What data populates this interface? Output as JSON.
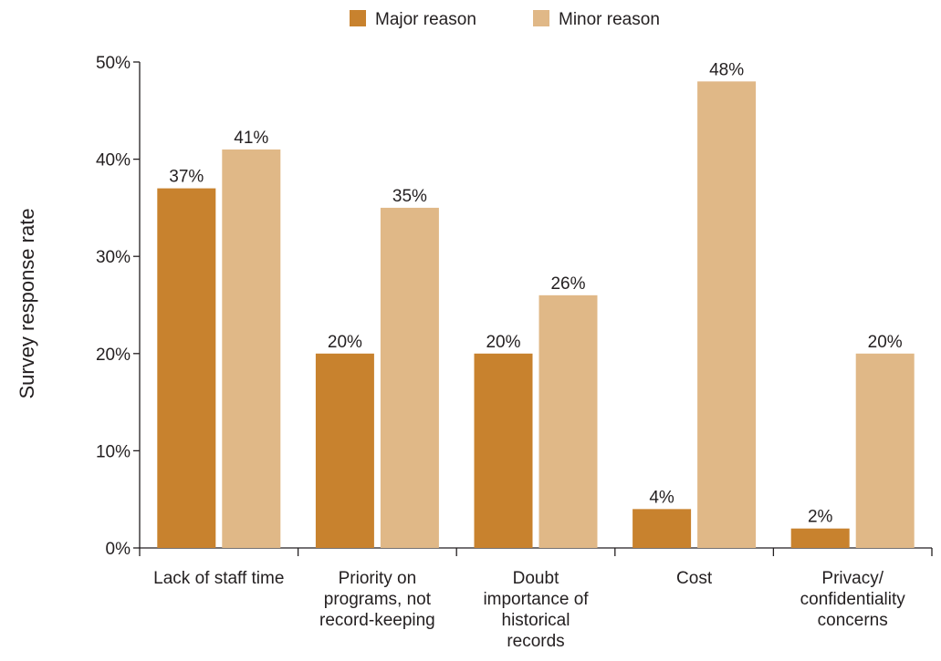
{
  "chart_data": {
    "type": "bar",
    "ylabel": "Survey response rate",
    "ylim": [
      0,
      50
    ],
    "yticks": [
      "0%",
      "10%",
      "20%",
      "30%",
      "40%",
      "50%"
    ],
    "categories": [
      [
        "Lack of staff time"
      ],
      [
        "Priority on",
        "programs, not",
        "record-keeping"
      ],
      [
        "Doubt",
        "importance of",
        "historical",
        "records"
      ],
      [
        "Cost"
      ],
      [
        "Privacy/",
        "confidentiality",
        "concerns"
      ]
    ],
    "series": [
      {
        "name": "Major reason",
        "color": "#c8822e",
        "values": [
          37,
          20,
          20,
          4,
          2
        ],
        "labels": [
          "37%",
          "20%",
          "20%",
          "4%",
          "2%"
        ]
      },
      {
        "name": "Minor reason",
        "color": "#e0b887",
        "values": [
          41,
          35,
          26,
          48,
          20
        ],
        "labels": [
          "41%",
          "35%",
          "26%",
          "48%",
          "20%"
        ]
      }
    ],
    "legend_position": "top-center",
    "grid": false
  }
}
